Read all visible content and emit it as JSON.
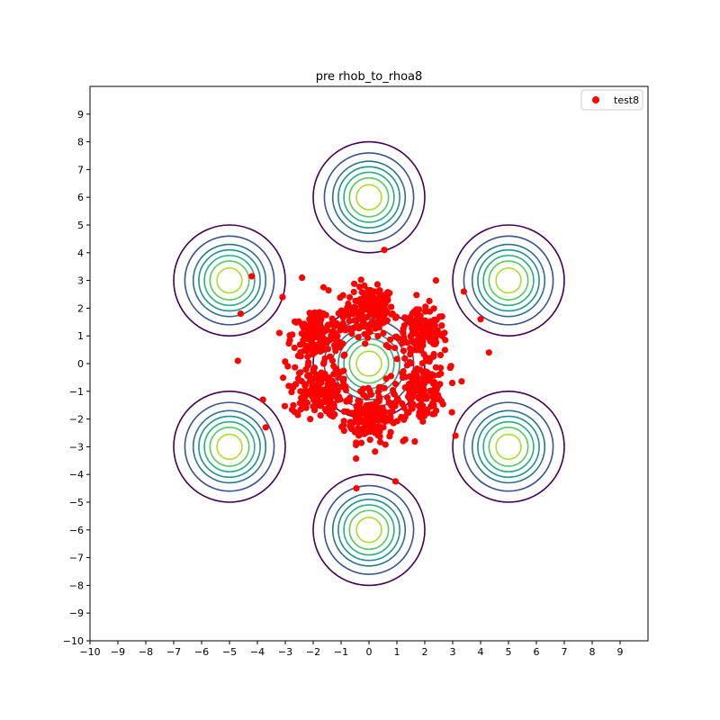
{
  "chart_data": {
    "type": "scatter",
    "title": "pre rhob_to_rhoa8",
    "xlabel": "",
    "ylabel": "",
    "xlim": [
      -10,
      10
    ],
    "ylim": [
      -10,
      10
    ],
    "xticks": [
      -10,
      -9,
      -8,
      -7,
      -6,
      -5,
      -4,
      -3,
      -2,
      -1,
      0,
      1,
      2,
      3,
      4,
      5,
      6,
      7,
      8,
      9
    ],
    "yticks": [
      -10,
      -9,
      -8,
      -7,
      -6,
      -5,
      -4,
      -3,
      -2,
      -1,
      0,
      1,
      2,
      3,
      4,
      5,
      6,
      7,
      8,
      9
    ],
    "grid": false,
    "legend": {
      "placement": "top-right",
      "entries": [
        {
          "name": "test8",
          "color": "#ff0000"
        }
      ]
    },
    "contours": {
      "description": "Concentric circular level sets of a Gaussian mixture",
      "centers": [
        [
          0,
          0
        ],
        [
          0,
          6
        ],
        [
          0,
          -6
        ],
        [
          5,
          3
        ],
        [
          5,
          -3
        ],
        [
          -5,
          3
        ],
        [
          -5,
          -3
        ]
      ],
      "radii": [
        2.0,
        1.6,
        1.3,
        1.1,
        0.9,
        0.7,
        0.45
      ],
      "level_colors": [
        "#440154",
        "#3b528b",
        "#2c728e",
        "#21918c",
        "#28ae80",
        "#5ec962",
        "#addc30"
      ]
    },
    "series": [
      {
        "name": "test8",
        "color": "#ff0000",
        "sampled_clusters": [
          {
            "center": [
              0.0,
              1.9
            ],
            "spread": 0.45,
            "count": 140
          },
          {
            "center": [
              0.0,
              -1.9
            ],
            "spread": 0.45,
            "count": 140
          },
          {
            "center": [
              1.9,
              1.0
            ],
            "spread": 0.45,
            "count": 140
          },
          {
            "center": [
              1.9,
              -1.0
            ],
            "spread": 0.45,
            "count": 140
          },
          {
            "center": [
              -1.9,
              1.0
            ],
            "spread": 0.45,
            "count": 140
          },
          {
            "center": [
              -1.9,
              -1.0
            ],
            "spread": 0.45,
            "count": 140
          },
          {
            "center": [
              0.0,
              0.0
            ],
            "spread": 1.7,
            "count": 170
          }
        ],
        "outlier_points": [
          [
            0.55,
            4.1
          ],
          [
            -4.2,
            3.15
          ],
          [
            -4.6,
            1.8
          ],
          [
            -4.7,
            0.1
          ],
          [
            -3.8,
            -1.3
          ],
          [
            -3.7,
            -2.3
          ],
          [
            -0.45,
            -4.5
          ],
          [
            0.95,
            -4.25
          ],
          [
            4.0,
            1.6
          ],
          [
            4.3,
            0.4
          ],
          [
            3.1,
            -2.6
          ],
          [
            -3.1,
            2.4
          ],
          [
            3.4,
            2.6
          ],
          [
            2.4,
            3.0
          ],
          [
            -2.4,
            3.1
          ]
        ]
      }
    ]
  }
}
